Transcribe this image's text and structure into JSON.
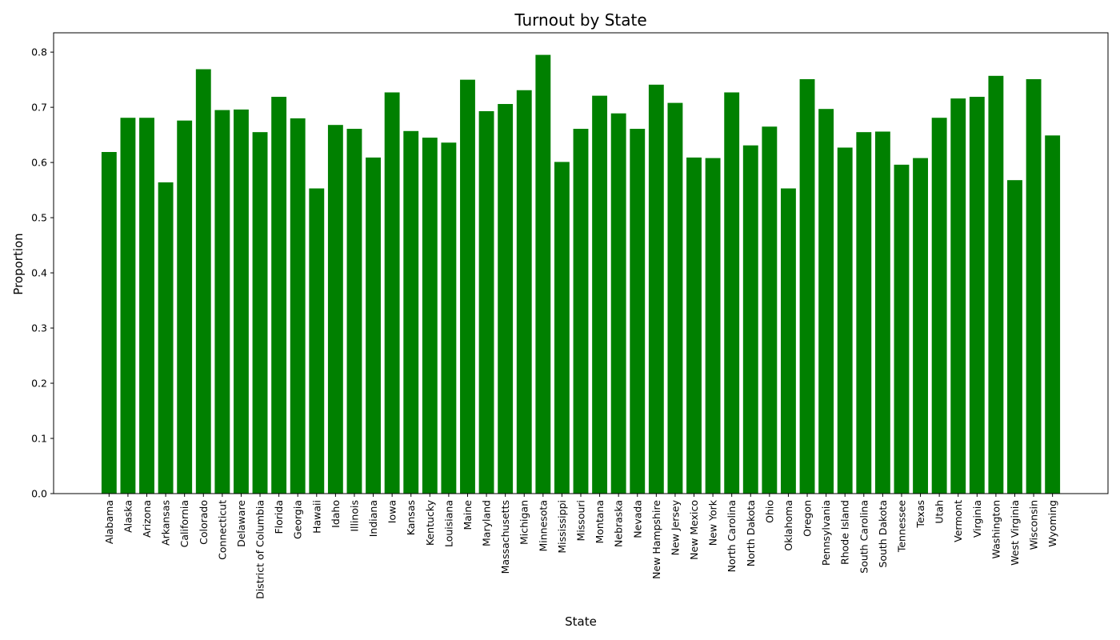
{
  "chart_data": {
    "type": "bar",
    "title": "Turnout by State",
    "xlabel": "State",
    "ylabel": "Proportion",
    "ylim": [
      0,
      0.835
    ],
    "yticks": [
      0.0,
      0.1,
      0.2,
      0.3,
      0.4,
      0.5,
      0.6,
      0.7,
      0.8
    ],
    "ytick_labels": [
      "0.0",
      "0.1",
      "0.2",
      "0.3",
      "0.4",
      "0.5",
      "0.6",
      "0.7",
      "0.8"
    ],
    "grid": false,
    "legend": "none",
    "bar_color": "#008000",
    "categories": [
      "Alabama",
      "Alaska",
      "Arizona",
      "Arkansas",
      "California",
      "Colorado",
      "Connecticut",
      "Delaware",
      "District of Columbia",
      "Florida",
      "Georgia",
      "Hawaii",
      "Idaho",
      "Illinois",
      "Indiana",
      "Iowa",
      "Kansas",
      "Kentucky",
      "Louisiana",
      "Maine",
      "Maryland",
      "Massachusetts",
      "Michigan",
      "Minnesota",
      "Mississippi",
      "Missouri",
      "Montana",
      "Nebraska",
      "Nevada",
      "New Hampshire",
      "New Jersey",
      "New Mexico",
      "New York",
      "North Carolina",
      "North Dakota",
      "Ohio",
      "Oklahoma",
      "Oregon",
      "Pennsylvania",
      "Rhode Island",
      "South Carolina",
      "South Dakota",
      "Tennessee",
      "Texas",
      "Utah",
      "Vermont",
      "Virginia",
      "Washington",
      "West Virginia",
      "Wisconsin",
      "Wyoming"
    ],
    "values": [
      0.619,
      0.681,
      0.681,
      0.564,
      0.676,
      0.769,
      0.695,
      0.696,
      0.655,
      0.719,
      0.68,
      0.553,
      0.668,
      0.661,
      0.609,
      0.727,
      0.657,
      0.645,
      0.636,
      0.75,
      0.693,
      0.706,
      0.731,
      0.795,
      0.601,
      0.661,
      0.721,
      0.689,
      0.661,
      0.741,
      0.708,
      0.609,
      0.608,
      0.727,
      0.631,
      0.665,
      0.553,
      0.751,
      0.697,
      0.627,
      0.655,
      0.656,
      0.596,
      0.608,
      0.681,
      0.716,
      0.719,
      0.757,
      0.568,
      0.751,
      0.649
    ]
  }
}
